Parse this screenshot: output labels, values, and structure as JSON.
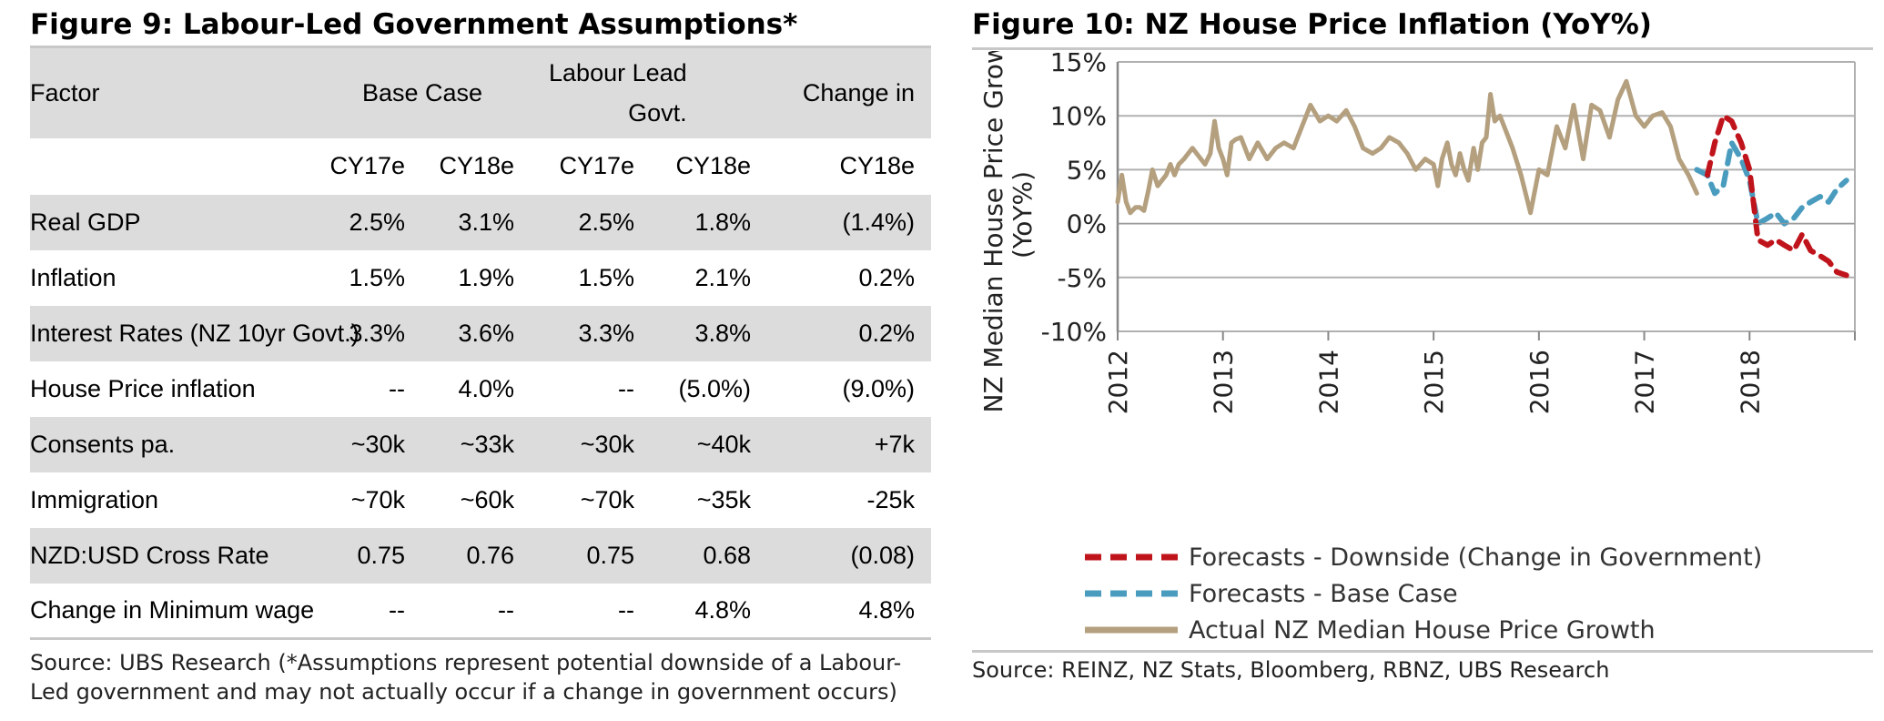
{
  "figure9": {
    "title": "Figure 9: Labour-Led Government Assumptions*",
    "header": {
      "factor": "Factor",
      "base_case": "Base Case",
      "labour_lead_line1": "Labour Lead",
      "labour_lead_line2": "Govt.",
      "change_in": "Change in",
      "years": [
        "CY17e",
        "CY18e",
        "CY17e",
        "CY18e",
        "CY18e"
      ]
    },
    "rows": [
      {
        "factor": "Real GDP",
        "values": [
          "2.5%",
          "3.1%",
          "2.5%",
          "1.8%",
          "(1.4%)"
        ]
      },
      {
        "factor": "Inflation",
        "values": [
          "1.5%",
          "1.9%",
          "1.5%",
          "2.1%",
          "0.2%"
        ]
      },
      {
        "factor": "Interest Rates (NZ 10yr Govt.)",
        "values": [
          "3.3%",
          "3.6%",
          "3.3%",
          "3.8%",
          "0.2%"
        ]
      },
      {
        "factor": "House Price inflation",
        "values": [
          "--",
          "4.0%",
          "--",
          "(5.0%)",
          "(9.0%)"
        ]
      },
      {
        "factor": "Consents pa.",
        "values": [
          "~30k",
          "~33k",
          "~30k",
          "~40k",
          "+7k"
        ]
      },
      {
        "factor": "Immigration",
        "values": [
          "~70k",
          "~60k",
          "~70k",
          "~35k",
          "-25k"
        ]
      },
      {
        "factor": "NZD:USD Cross Rate",
        "values": [
          "0.75",
          "0.76",
          "0.75",
          "0.68",
          "(0.08)"
        ]
      },
      {
        "factor": "Change in Minimum wage",
        "values": [
          "--",
          "--",
          "--",
          "4.8%",
          "4.8%"
        ]
      }
    ],
    "source_line1": "Source:  UBS Research (*Assumptions represent potential downside of a Labour-",
    "source_line2": "Led government and may not actually occur if a change in government occurs)"
  },
  "figure10": {
    "title": "Figure 10: NZ House Price Inflation (YoY%)",
    "source": "Source:  REINZ, NZ Stats, Bloomberg, RBNZ, UBS Research"
  },
  "chart_data": {
    "type": "line",
    "title": "Figure 10: NZ House Price Inflation (YoY%)",
    "xlabel": "",
    "ylabel_line1": "NZ Median House Price Growth",
    "ylabel_line2": "(YoY%)",
    "ylim": [
      -10,
      15
    ],
    "xlim": [
      2012,
      2019
    ],
    "yticks": [
      15,
      10,
      5,
      0,
      -5,
      -10
    ],
    "ytick_labels": [
      "15%",
      "10%",
      "5%",
      "0%",
      "-5%",
      "-10%"
    ],
    "xticks": [
      2012,
      2013,
      2014,
      2015,
      2016,
      2017,
      2018
    ],
    "xtick_labels": [
      "2012",
      "2013",
      "2014",
      "2015",
      "2016",
      "2017",
      "2018"
    ],
    "grid": true,
    "legend_position": "bottom",
    "series": [
      {
        "name": "Forecasts - Downside (Change in Government)",
        "color": "#c0141c",
        "dash": true,
        "x": [
          2017.6,
          2017.67,
          2017.75,
          2017.83,
          2017.92,
          2018.0,
          2018.08,
          2018.17,
          2018.25,
          2018.33,
          2018.42,
          2018.5,
          2018.58,
          2018.67,
          2018.75,
          2018.83,
          2018.92
        ],
        "y": [
          4.5,
          7.5,
          10.0,
          9.5,
          7.5,
          5.0,
          -1.5,
          -2.0,
          -1.5,
          -2.0,
          -2.5,
          -1.0,
          -2.5,
          -3.0,
          -3.5,
          -4.5,
          -4.8
        ]
      },
      {
        "name": "Forecasts - Base Case",
        "color": "#4a9cbf",
        "dash": true,
        "x": [
          2017.5,
          2017.6,
          2017.67,
          2017.75,
          2017.83,
          2017.92,
          2018.0,
          2018.08,
          2018.17,
          2018.25,
          2018.33,
          2018.42,
          2018.5,
          2018.58,
          2018.67,
          2018.75,
          2018.83,
          2018.92
        ],
        "y": [
          5.0,
          4.5,
          2.8,
          3.5,
          7.5,
          6.0,
          4.0,
          0.0,
          0.5,
          1.0,
          0.0,
          0.5,
          1.5,
          2.0,
          2.5,
          2.0,
          3.2,
          4.0
        ]
      },
      {
        "name": "Actual NZ Median House Price Growth",
        "color": "#b4a07f",
        "dash": false,
        "x": [
          2012.0,
          2012.04,
          2012.08,
          2012.12,
          2012.17,
          2012.21,
          2012.25,
          2012.29,
          2012.33,
          2012.38,
          2012.42,
          2012.46,
          2012.5,
          2012.54,
          2012.58,
          2012.63,
          2012.67,
          2012.71,
          2012.75,
          2012.79,
          2012.83,
          2012.88,
          2012.92,
          2012.96,
          2013.0,
          2013.04,
          2013.08,
          2013.12,
          2013.17,
          2013.21,
          2013.25,
          2013.33,
          2013.42,
          2013.5,
          2013.58,
          2013.67,
          2013.75,
          2013.83,
          2013.92,
          2014.0,
          2014.08,
          2014.17,
          2014.25,
          2014.33,
          2014.42,
          2014.5,
          2014.58,
          2014.67,
          2014.75,
          2014.83,
          2014.92,
          2015.0,
          2015.04,
          2015.08,
          2015.13,
          2015.17,
          2015.21,
          2015.25,
          2015.29,
          2015.33,
          2015.38,
          2015.42,
          2015.46,
          2015.5,
          2015.54,
          2015.58,
          2015.63,
          2015.67,
          2015.75,
          2015.83,
          2015.92,
          2016.0,
          2016.08,
          2016.17,
          2016.25,
          2016.33,
          2016.42,
          2016.5,
          2016.58,
          2016.67,
          2016.75,
          2016.83,
          2016.92,
          2017.0,
          2017.08,
          2017.17,
          2017.25,
          2017.33,
          2017.42,
          2017.5
        ],
        "y": [
          2.0,
          4.5,
          2.0,
          1.0,
          1.5,
          1.5,
          1.2,
          3.0,
          5.0,
          3.5,
          4.0,
          4.5,
          5.5,
          4.5,
          5.5,
          6.0,
          6.5,
          7.0,
          6.5,
          6.0,
          5.5,
          6.5,
          9.5,
          7.0,
          6.0,
          4.5,
          7.5,
          7.8,
          8.0,
          7.0,
          6.0,
          7.5,
          6.0,
          7.0,
          7.5,
          7.0,
          9.0,
          11.0,
          9.5,
          10.0,
          9.5,
          10.5,
          9.0,
          7.0,
          6.5,
          7.0,
          8.0,
          7.5,
          6.5,
          5.0,
          6.0,
          5.5,
          3.5,
          6.0,
          7.5,
          5.5,
          4.5,
          6.5,
          5.0,
          4.0,
          7.0,
          5.0,
          7.5,
          8.0,
          12.0,
          9.5,
          10.0,
          9.0,
          7.0,
          4.5,
          1.0,
          5.0,
          4.5,
          9.0,
          7.0,
          11.0,
          6.0,
          11.0,
          10.5,
          8.0,
          11.5,
          13.2,
          10.0,
          9.0,
          10.0,
          10.3,
          9.0,
          6.0,
          4.5,
          2.8
        ]
      }
    ]
  }
}
